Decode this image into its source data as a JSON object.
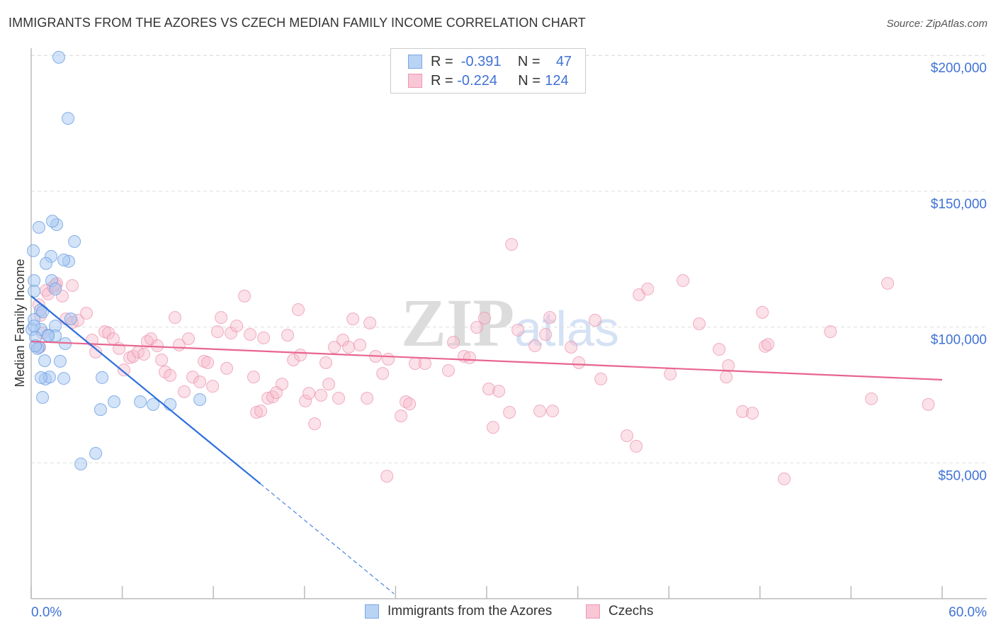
{
  "title": "IMMIGRANTS FROM THE AZORES VS CZECH MEDIAN FAMILY INCOME CORRELATION CHART",
  "source": "Source: ZipAtlas.com",
  "watermark": "ZIPatlas",
  "legend": {
    "rows": [
      {
        "r_label": "R =",
        "r": "-0.391",
        "n_label": "N =",
        "n": "47"
      },
      {
        "r_label": "R =",
        "r": "-0.224",
        "n_label": "N =",
        "n": "124"
      }
    ]
  },
  "chart_data": {
    "type": "scatter",
    "title": "IMMIGRANTS FROM THE AZORES VS CZECH MEDIAN FAMILY INCOME CORRELATION CHART",
    "xlabel": "",
    "ylabel": "Median Family Income",
    "xlim": [
      0,
      60
    ],
    "ylim": [
      0,
      210000
    ],
    "x_tick_labels": [
      "0.0%",
      "60.0%"
    ],
    "y_ticks": [
      50000,
      100000,
      150000,
      200000
    ],
    "y_tick_labels": [
      "$50,000",
      "$100,000",
      "$150,000",
      "$200,000"
    ],
    "grid": true,
    "legend_placement": "bottom",
    "colors": {
      "azores_fill": "#a8c8f2",
      "azores_stroke": "#6b9fe3",
      "azores_line": "#2b6fdc",
      "czech_fill": "#f7bccd",
      "czech_stroke": "#eb8fae",
      "czech_line": "#e8658f"
    },
    "series": [
      {
        "name": "Immigrants from the Azores",
        "r": -0.391,
        "n": 47,
        "trend": {
          "x": [
            0,
            15.1
          ],
          "y": [
            111400,
            42300
          ],
          "dashed_to": {
            "x": 23.9,
            "y": 1800
          }
        },
        "points": [
          [
            1.82,
            199300
          ],
          [
            2.43,
            176800
          ],
          [
            0.51,
            136700
          ],
          [
            1.68,
            137700
          ],
          [
            1.4,
            139000
          ],
          [
            2.85,
            131500
          ],
          [
            0.14,
            128100
          ],
          [
            1.31,
            126000
          ],
          [
            0.98,
            123400
          ],
          [
            2.47,
            124200
          ],
          [
            2.15,
            124700
          ],
          [
            0.19,
            117100
          ],
          [
            1.35,
            117100
          ],
          [
            1.59,
            114000
          ],
          [
            0.19,
            113200
          ],
          [
            0.61,
            106200
          ],
          [
            0.75,
            105600
          ],
          [
            0.19,
            102800
          ],
          [
            0.65,
            99100
          ],
          [
            1.59,
            100400
          ],
          [
            2.61,
            103000
          ],
          [
            1.12,
            97000
          ],
          [
            1.59,
            96800
          ],
          [
            0.05,
            99100
          ],
          [
            2.24,
            93900
          ],
          [
            0.51,
            92600
          ],
          [
            0.42,
            92100
          ],
          [
            0.89,
            87600
          ],
          [
            1.91,
            87400
          ],
          [
            0.93,
            80900
          ],
          [
            1.21,
            81600
          ],
          [
            2.15,
            81100
          ],
          [
            4.67,
            81400
          ],
          [
            0.75,
            74100
          ],
          [
            4.57,
            69600
          ],
          [
            5.46,
            72500
          ],
          [
            7.19,
            72500
          ],
          [
            8.03,
            71500
          ],
          [
            9.15,
            71500
          ],
          [
            11.11,
            73300
          ],
          [
            4.25,
            53500
          ],
          [
            3.27,
            49600
          ],
          [
            0.28,
            96200
          ],
          [
            0.28,
            93100
          ],
          [
            1.12,
            96800
          ],
          [
            0.19,
            100400
          ],
          [
            0.65,
            81400
          ]
        ]
      },
      {
        "name": "Czechs",
        "r": -0.224,
        "n": 124,
        "trend": {
          "x": [
            0,
            60
          ],
          "y": [
            94700,
            80600
          ]
        },
        "points": [
          [
            0.51,
            108200
          ],
          [
            0.61,
            104300
          ],
          [
            0.98,
            113500
          ],
          [
            1.12,
            112200
          ],
          [
            1.45,
            114800
          ],
          [
            1.68,
            116100
          ],
          [
            2.05,
            111400
          ],
          [
            2.71,
            115300
          ],
          [
            1.59,
            115500
          ],
          [
            2.29,
            103000
          ],
          [
            2.71,
            101700
          ],
          [
            3.08,
            102500
          ],
          [
            3.64,
            105100
          ],
          [
            0.56,
            92600
          ],
          [
            0.75,
            97800
          ],
          [
            4.01,
            95200
          ],
          [
            4.25,
            90800
          ],
          [
            4.85,
            98300
          ],
          [
            5.09,
            97800
          ],
          [
            5.41,
            95700
          ],
          [
            5.79,
            92100
          ],
          [
            6.11,
            84200
          ],
          [
            6.49,
            88700
          ],
          [
            6.72,
            89200
          ],
          [
            7.05,
            90800
          ],
          [
            7.42,
            90000
          ],
          [
            7.65,
            94700
          ],
          [
            7.89,
            95700
          ],
          [
            8.31,
            93100
          ],
          [
            8.59,
            87900
          ],
          [
            8.82,
            83500
          ],
          [
            9.15,
            82200
          ],
          [
            9.47,
            103500
          ],
          [
            9.75,
            93400
          ],
          [
            10.08,
            76200
          ],
          [
            10.36,
            95700
          ],
          [
            10.64,
            81600
          ],
          [
            11.11,
            79800
          ],
          [
            11.39,
            87400
          ],
          [
            11.62,
            86900
          ],
          [
            11.95,
            78200
          ],
          [
            12.27,
            98300
          ],
          [
            12.51,
            103500
          ],
          [
            12.88,
            84800
          ],
          [
            13.16,
            97800
          ],
          [
            13.53,
            100400
          ],
          [
            14.05,
            111400
          ],
          [
            14.42,
            97300
          ],
          [
            14.65,
            81600
          ],
          [
            14.84,
            68600
          ],
          [
            15.12,
            69100
          ],
          [
            15.31,
            96000
          ],
          [
            15.59,
            73800
          ],
          [
            15.91,
            74300
          ],
          [
            16.15,
            75900
          ],
          [
            16.52,
            79000
          ],
          [
            16.89,
            97000
          ],
          [
            17.27,
            87900
          ],
          [
            17.59,
            106400
          ],
          [
            17.73,
            89700
          ],
          [
            18.06,
            72800
          ],
          [
            18.29,
            75600
          ],
          [
            18.67,
            64400
          ],
          [
            19.09,
            74900
          ],
          [
            19.41,
            86900
          ],
          [
            19.6,
            79000
          ],
          [
            19.97,
            92600
          ],
          [
            20.25,
            73800
          ],
          [
            20.53,
            95200
          ],
          [
            20.91,
            92600
          ],
          [
            21.19,
            103000
          ],
          [
            21.65,
            93400
          ],
          [
            22.12,
            73800
          ],
          [
            22.31,
            101500
          ],
          [
            22.68,
            89200
          ],
          [
            23.15,
            82900
          ],
          [
            23.43,
            45100
          ],
          [
            23.52,
            88200
          ],
          [
            24.36,
            67300
          ],
          [
            24.68,
            72500
          ],
          [
            24.92,
            71700
          ],
          [
            25.29,
            86600
          ],
          [
            25.94,
            86600
          ],
          [
            27.48,
            84000
          ],
          [
            27.81,
            94400
          ],
          [
            28.51,
            89200
          ],
          [
            28.88,
            88700
          ],
          [
            29.35,
            99900
          ],
          [
            29.86,
            103300
          ],
          [
            30.14,
            77200
          ],
          [
            30.42,
            63100
          ],
          [
            30.8,
            76400
          ],
          [
            31.5,
            68600
          ],
          [
            31.64,
            130400
          ],
          [
            32.06,
            98900
          ],
          [
            33.18,
            93100
          ],
          [
            33.5,
            69100
          ],
          [
            33.88,
            97300
          ],
          [
            34.16,
            103500
          ],
          [
            34.34,
            69100
          ],
          [
            35.56,
            92600
          ],
          [
            36.07,
            86900
          ],
          [
            37.52,
            80900
          ],
          [
            37.14,
            102500
          ],
          [
            39.24,
            60000
          ],
          [
            39.85,
            56100
          ],
          [
            40.04,
            111900
          ],
          [
            40.6,
            114000
          ],
          [
            42.09,
            82700
          ],
          [
            42.93,
            117100
          ],
          [
            44.0,
            101200
          ],
          [
            45.31,
            91800
          ],
          [
            45.78,
            81600
          ],
          [
            45.92,
            85800
          ],
          [
            46.85,
            68900
          ],
          [
            47.5,
            68300
          ],
          [
            48.16,
            105400
          ],
          [
            48.34,
            92900
          ],
          [
            48.53,
            93600
          ],
          [
            49.6,
            44100
          ],
          [
            52.64,
            98300
          ],
          [
            55.34,
            73600
          ],
          [
            56.41,
            116100
          ],
          [
            59.09,
            71500
          ]
        ]
      }
    ]
  }
}
